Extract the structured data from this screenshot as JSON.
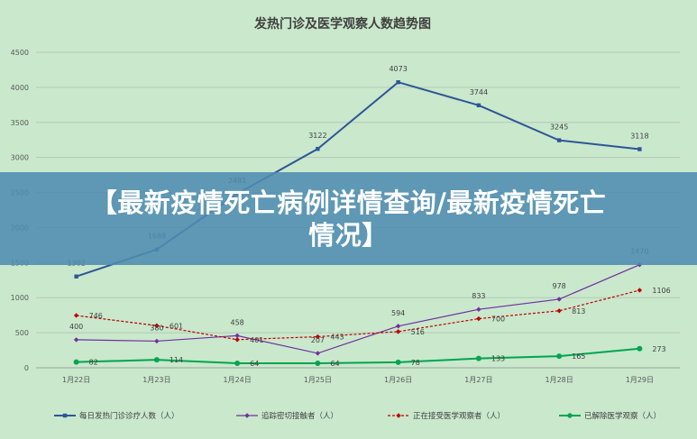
{
  "chart_data": {
    "type": "line",
    "title": "发热门诊及医学观察人数趋势图",
    "categories": [
      "1月22日",
      "1月23日",
      "1月24日",
      "1月25日",
      "1月26日",
      "1月27日",
      "1月28日",
      "1月29日"
    ],
    "ylim": [
      0,
      4500
    ],
    "yticks": [
      0,
      500,
      1000,
      1500,
      2000,
      2500,
      3000,
      3500,
      4000,
      4500
    ],
    "grid": true,
    "legend_position": "bottom",
    "series": [
      {
        "name": "每日发热门诊诊疗人数（人）",
        "values": [
          1302,
          1688,
          2481,
          3122,
          4073,
          3744,
          3245,
          3118
        ],
        "color": "#2e5597",
        "style": "solid",
        "marker": "square"
      },
      {
        "name": "追踪密切接触者（人）",
        "values": [
          400,
          380,
          458,
          207,
          594,
          833,
          978,
          1470
        ],
        "color": "#7030a0",
        "style": "solid",
        "marker": "diamond"
      },
      {
        "name": "正在接受医学观察者（人）",
        "values": [
          746,
          601,
          401,
          443,
          516,
          700,
          813,
          1106
        ],
        "color": "#c00000",
        "style": "dashed",
        "marker": "diamond"
      },
      {
        "name": "已解除医学观察（人）",
        "values": [
          82,
          114,
          64,
          64,
          78,
          133,
          165,
          273
        ],
        "color": "#00a550",
        "style": "solid",
        "marker": "circle"
      }
    ]
  },
  "overlay": {
    "line1": "【最新疫情死亡病例详情查询/最新疫情死亡",
    "line2": "情况】"
  }
}
